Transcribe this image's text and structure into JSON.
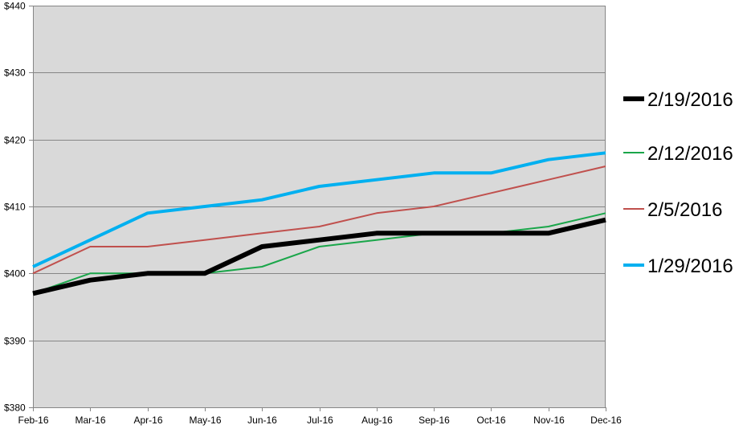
{
  "chart_data": {
    "type": "line",
    "categories": [
      "Feb-16",
      "Mar-16",
      "Apr-16",
      "May-16",
      "Jun-16",
      "Jul-16",
      "Aug-16",
      "Sep-16",
      "Oct-16",
      "Nov-16",
      "Dec-16"
    ],
    "ylim": [
      380,
      440
    ],
    "yticks": [
      380,
      390,
      400,
      410,
      420,
      430,
      440
    ],
    "ytick_labels": [
      "$380",
      "$390",
      "$400",
      "$410",
      "$420",
      "$430",
      "$440"
    ],
    "grid": "horizontal",
    "plot_background": "#d9d9d9",
    "legend_position": "right",
    "series": [
      {
        "name": "2/19/2016",
        "color": "#000000",
        "values": [
          397,
          399,
          400,
          400,
          404,
          405,
          406,
          406,
          406,
          406,
          408
        ]
      },
      {
        "name": "2/12/2016",
        "color": "#1aa64a",
        "values": [
          397,
          400,
          400,
          400,
          401,
          404,
          405,
          406,
          406,
          407,
          409
        ]
      },
      {
        "name": "2/5/2016",
        "color": "#c0504d",
        "values": [
          400,
          404,
          404,
          405,
          406,
          407,
          409,
          410,
          412,
          414,
          416
        ]
      },
      {
        "name": "1/29/2016",
        "color": "#00b0f0",
        "values": [
          401,
          405,
          409,
          410,
          411,
          413,
          414,
          415,
          415,
          417,
          418
        ]
      }
    ]
  }
}
